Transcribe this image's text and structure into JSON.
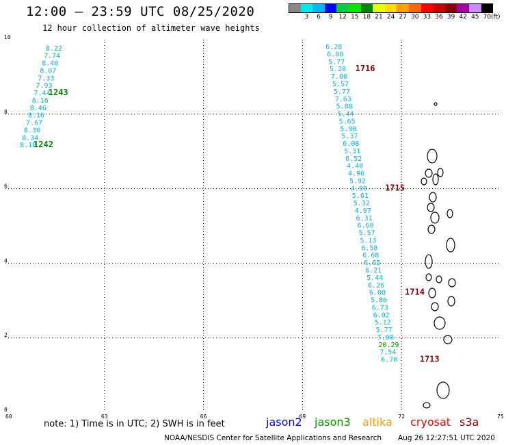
{
  "header": {
    "title": "12:00 – 23:59 UTC 08/25/2020",
    "subtitle": "12 hour collection of altimeter wave heights"
  },
  "legend_scale": {
    "unit": "(ft)",
    "bins": [
      {
        "label": "",
        "color": "#888888"
      },
      {
        "label": "3",
        "color": "#00e8e8"
      },
      {
        "label": "6",
        "color": "#00b4ff"
      },
      {
        "label": "9",
        "color": "#0000ff"
      },
      {
        "label": "12",
        "color": "#00cc44"
      },
      {
        "label": "15",
        "color": "#00e800"
      },
      {
        "label": "18",
        "color": "#008800"
      },
      {
        "label": "21",
        "color": "#e8ff00"
      },
      {
        "label": "24",
        "color": "#ffdd00"
      },
      {
        "label": "27",
        "color": "#ffa000"
      },
      {
        "label": "30",
        "color": "#ff6600"
      },
      {
        "label": "33",
        "color": "#ff0000"
      },
      {
        "label": "36",
        "color": "#cc0000"
      },
      {
        "label": "39",
        "color": "#880000"
      },
      {
        "label": "42",
        "color": "#aa00aa"
      },
      {
        "label": "45",
        "color": "#cc88ff"
      },
      {
        "label": "70",
        "color": "#000000"
      }
    ]
  },
  "map": {
    "lon_ticks": [
      "60",
      "63",
      "66",
      "69",
      "72",
      "75"
    ],
    "lat_ticks": [
      "0",
      "2",
      "4",
      "6",
      "8",
      "10"
    ],
    "lon_range": [
      60,
      75
    ],
    "lat_range": [
      0,
      10
    ],
    "colors": {
      "cyan": "#00b4e8",
      "green": "#008800",
      "darkgreen": "#007700",
      "darkred": "#880000"
    }
  },
  "tracks": [
    {
      "satellite": "jason3",
      "color": "#00b4e8",
      "points": [
        {
          "lon": 61.22,
          "lat": 9.71,
          "v": "8.22"
        },
        {
          "lon": 61.16,
          "lat": 9.51,
          "v": "7.74"
        },
        {
          "lon": 61.1,
          "lat": 9.31,
          "v": "8.40"
        },
        {
          "lon": 61.04,
          "lat": 9.11,
          "v": "8.07"
        },
        {
          "lon": 60.98,
          "lat": 8.91,
          "v": "7.33"
        },
        {
          "lon": 60.92,
          "lat": 8.71,
          "v": "7.93"
        },
        {
          "lon": 60.86,
          "lat": 8.51,
          "v": "7.44"
        },
        {
          "lon": 60.8,
          "lat": 8.31,
          "v": "8.16"
        },
        {
          "lon": 60.74,
          "lat": 8.11,
          "v": "8.46"
        },
        {
          "lon": 60.68,
          "lat": 7.91,
          "v": "8.16"
        },
        {
          "lon": 60.62,
          "lat": 7.71,
          "v": "7.67"
        },
        {
          "lon": 60.56,
          "lat": 7.51,
          "v": "8.30"
        },
        {
          "lon": 60.5,
          "lat": 7.31,
          "v": "8.34"
        },
        {
          "lon": 60.44,
          "lat": 7.11,
          "v": "8.18"
        }
      ],
      "time_labels": [
        {
          "text": "1243",
          "lon": 61.3,
          "lat": 8.51,
          "color": "#008800"
        },
        {
          "text": "1242",
          "lon": 60.85,
          "lat": 7.11,
          "color": "#008800"
        }
      ]
    },
    {
      "satellite": "jason3",
      "color": "#00b4e8",
      "points": [
        {
          "lon": 69.7,
          "lat": 9.75,
          "v": "6.28"
        },
        {
          "lon": 69.74,
          "lat": 9.55,
          "v": "6.00"
        },
        {
          "lon": 69.78,
          "lat": 9.35,
          "v": "5.77"
        },
        {
          "lon": 69.82,
          "lat": 9.15,
          "v": "5.28"
        },
        {
          "lon": 69.86,
          "lat": 8.95,
          "v": "7.00"
        },
        {
          "lon": 69.9,
          "lat": 8.75,
          "v": "5.57"
        },
        {
          "lon": 69.94,
          "lat": 8.55,
          "v": "5.77"
        },
        {
          "lon": 69.98,
          "lat": 8.35,
          "v": "7.63"
        },
        {
          "lon": 70.02,
          "lat": 8.15,
          "v": "5.88"
        },
        {
          "lon": 70.06,
          "lat": 7.95,
          "v": "5.44"
        },
        {
          "lon": 70.1,
          "lat": 7.75,
          "v": "5.65"
        },
        {
          "lon": 70.14,
          "lat": 7.55,
          "v": "5.98"
        },
        {
          "lon": 70.18,
          "lat": 7.35,
          "v": "5.37"
        },
        {
          "lon": 70.22,
          "lat": 7.15,
          "v": "6.08"
        },
        {
          "lon": 70.26,
          "lat": 6.95,
          "v": "5.31"
        },
        {
          "lon": 70.3,
          "lat": 6.75,
          "v": "6.52"
        },
        {
          "lon": 70.34,
          "lat": 6.55,
          "v": "4.40"
        },
        {
          "lon": 70.38,
          "lat": 6.35,
          "v": "4.96"
        },
        {
          "lon": 70.42,
          "lat": 6.15,
          "v": "5.92"
        },
        {
          "lon": 70.46,
          "lat": 5.95,
          "v": "4.90"
        },
        {
          "lon": 70.5,
          "lat": 5.75,
          "v": "5.61"
        },
        {
          "lon": 70.54,
          "lat": 5.55,
          "v": "5.32"
        },
        {
          "lon": 70.58,
          "lat": 5.35,
          "v": "4.97"
        },
        {
          "lon": 70.62,
          "lat": 5.15,
          "v": "6.31"
        },
        {
          "lon": 70.66,
          "lat": 4.95,
          "v": "6.60"
        },
        {
          "lon": 70.7,
          "lat": 4.75,
          "v": "5.57"
        },
        {
          "lon": 70.74,
          "lat": 4.55,
          "v": "5.13"
        },
        {
          "lon": 70.78,
          "lat": 4.35,
          "v": "6.58"
        },
        {
          "lon": 70.82,
          "lat": 4.15,
          "v": "6.68"
        },
        {
          "lon": 70.86,
          "lat": 3.95,
          "v": "6.65"
        },
        {
          "lon": 70.9,
          "lat": 3.75,
          "v": "6.21"
        },
        {
          "lon": 70.94,
          "lat": 3.55,
          "v": "5.44"
        },
        {
          "lon": 70.98,
          "lat": 3.35,
          "v": "6.26"
        },
        {
          "lon": 71.02,
          "lat": 3.15,
          "v": "6.00"
        },
        {
          "lon": 71.06,
          "lat": 2.95,
          "v": "5.86"
        },
        {
          "lon": 71.1,
          "lat": 2.75,
          "v": "6.73"
        },
        {
          "lon": 71.14,
          "lat": 2.55,
          "v": "6.02"
        },
        {
          "lon": 71.18,
          "lat": 2.35,
          "v": "5.12"
        },
        {
          "lon": 71.22,
          "lat": 2.15,
          "v": "5.77"
        },
        {
          "lon": 71.26,
          "lat": 1.95,
          "v": "7.00"
        },
        {
          "lon": 71.3,
          "lat": 1.75,
          "v": "20.29",
          "color": "#008800"
        },
        {
          "lon": 71.34,
          "lat": 1.55,
          "v": "7.54"
        },
        {
          "lon": 71.38,
          "lat": 1.35,
          "v": "6.70"
        }
      ],
      "time_labels": [
        {
          "text": "1716",
          "lon": 70.6,
          "lat": 9.15,
          "color": "#880000"
        },
        {
          "text": "1715",
          "lon": 71.5,
          "lat": 5.95,
          "color": "#880000"
        },
        {
          "text": "1714",
          "lon": 72.1,
          "lat": 3.15,
          "color": "#880000"
        },
        {
          "text": "1713",
          "lon": 72.55,
          "lat": 1.35,
          "color": "#880000"
        }
      ]
    }
  ],
  "bottom": {
    "note": "note:  1) Time is in UTC;  2) SWH is in feet",
    "satellites": [
      {
        "name": "jason2",
        "color": "#0000ff"
      },
      {
        "name": "jason3",
        "color": "#009900"
      },
      {
        "name": "altika",
        "color": "#ff9900"
      },
      {
        "name": "cryosat",
        "color": "#ff0000"
      },
      {
        "name": "s3a",
        "color": "#880000"
      }
    ],
    "source": "NOAA/NESDIS Center for Satellite Applications and Research",
    "timestamp": "Aug 26 12:27:51 UTC 2020"
  }
}
